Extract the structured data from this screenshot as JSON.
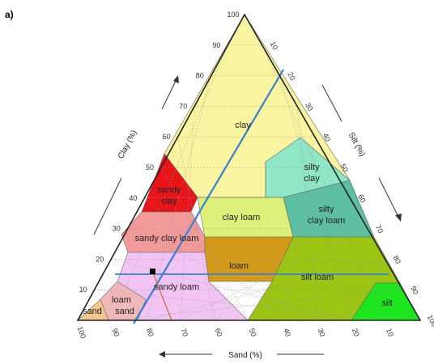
{
  "panel_label": "a)",
  "axes": {
    "clay": "Clay (%)",
    "silt": "Silt (%)",
    "sand": "Sand (%)"
  },
  "ticks": {
    "clay": [
      "10",
      "20",
      "30",
      "40",
      "50",
      "60",
      "70",
      "80",
      "90",
      "100"
    ],
    "silt": [
      "10",
      "20",
      "30",
      "40",
      "50",
      "60",
      "70",
      "80",
      "90",
      "100"
    ],
    "sand": [
      "100",
      "90",
      "80",
      "70",
      "60",
      "50",
      "40",
      "30",
      "20",
      "10"
    ]
  },
  "classes": {
    "clay": "clay",
    "sandy_clay_1": "sandy",
    "sandy_clay_2": "clay",
    "silty_clay_1": "silty",
    "silty_clay_2": "clay",
    "clay_loam": "clay loam",
    "silty_clay_loam_1": "silty",
    "silty_clay_loam_2": "clay loam",
    "sandy_clay_loam": "sandy clay loam",
    "loam": "loam",
    "silt_loam": "silt loam",
    "sandy_loam": "sandy loam",
    "silt": "silt",
    "sand": "sand",
    "loamy_sand_1": "loam",
    "loamy_sand_2": "sand"
  },
  "colors": {
    "clay": "#f8f4a0",
    "sandy_clay": "#e8141a",
    "silty_clay": "#8ee8c8",
    "clay_loam": "#dcf07a",
    "silty_clay_loam": "#5cbfa2",
    "sandy_clay_loam": "#f29a9a",
    "loam": "#d39a1a",
    "silt_loam": "#9cc412",
    "sandy_loam": "#f1c4f4",
    "silt": "#1ee61e",
    "sand": "#f3c78f",
    "loamy_sand": "#f0b8b8",
    "overlay_line": "#3a7fd0",
    "marker": "#000000"
  }
}
